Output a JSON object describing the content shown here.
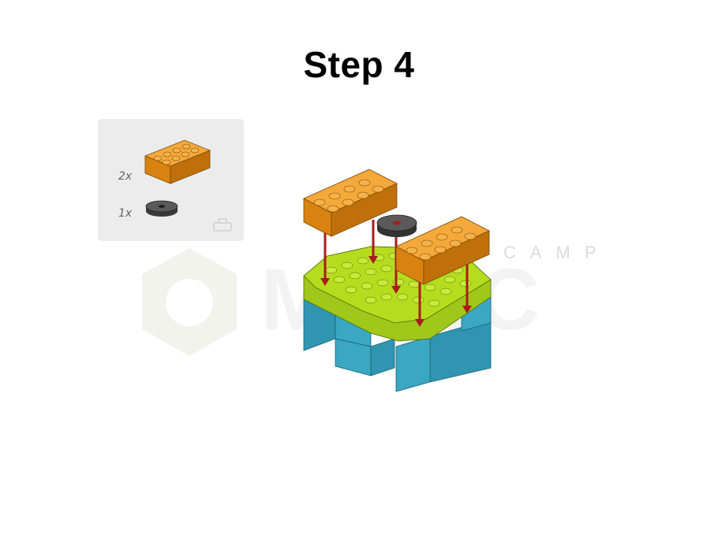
{
  "page": {
    "title": "Step 4"
  },
  "parts_list": {
    "items": [
      {
        "quantity": "2x",
        "part": "orange 2x4 brick",
        "color": "#e8921a"
      },
      {
        "quantity": "1x",
        "part": "dark grey round tile",
        "color": "#555555"
      }
    ]
  },
  "watermark": {
    "text": "CAMP",
    "brand_text": "MOBC"
  },
  "colors": {
    "orange": "#e8921a",
    "lime": "#b6dc1e",
    "teal": "#3aa7c3",
    "dark_grey": "#4a4a4a",
    "arrow_red": "#a81c1c",
    "panel_bg": "#ececec"
  }
}
